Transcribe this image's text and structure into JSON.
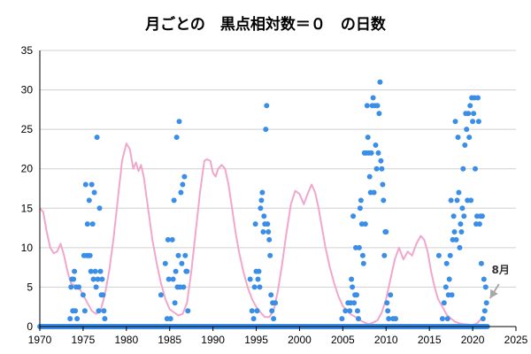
{
  "chart_data": {
    "type": "scatter",
    "title": "月ごとの　黒点相対数＝０　の日数",
    "xlabel": "",
    "ylabel": "",
    "xlim": [
      1970,
      2025
    ],
    "ylim": [
      0,
      35
    ],
    "x_ticks": [
      1970,
      1975,
      1980,
      1985,
      1990,
      1995,
      2000,
      2005,
      2010,
      2015,
      2020,
      2025
    ],
    "y_ticks": [
      0,
      5,
      10,
      15,
      20,
      25,
      30,
      35
    ],
    "grid": "horizontal",
    "legend": "none",
    "colors": {
      "points": "#3b8ee8",
      "line": "#f2a6cc",
      "axis": "#000000",
      "grid": "#d0d0d0",
      "annotation": "#a8a8a8"
    },
    "series": [
      {
        "type": "scatter",
        "points": [
          [
            1973.5,
            1
          ],
          [
            1973.6,
            5
          ],
          [
            1973.7,
            6
          ],
          [
            1973.8,
            2
          ],
          [
            1973.9,
            6
          ],
          [
            1974.0,
            7
          ],
          [
            1974.1,
            2
          ],
          [
            1974.2,
            5
          ],
          [
            1974.3,
            1
          ],
          [
            1974.5,
            5
          ],
          [
            1975.0,
            4
          ],
          [
            1975.1,
            9
          ],
          [
            1975.2,
            2
          ],
          [
            1975.3,
            18
          ],
          [
            1975.4,
            9
          ],
          [
            1975.5,
            13
          ],
          [
            1975.6,
            9
          ],
          [
            1975.7,
            16
          ],
          [
            1975.8,
            9
          ],
          [
            1975.9,
            7
          ],
          [
            1976.0,
            18
          ],
          [
            1976.1,
            13
          ],
          [
            1976.2,
            6
          ],
          [
            1976.3,
            17
          ],
          [
            1976.4,
            7
          ],
          [
            1976.5,
            5
          ],
          [
            1976.6,
            24
          ],
          [
            1976.7,
            6
          ],
          [
            1976.8,
            2
          ],
          [
            1976.9,
            15
          ],
          [
            1977.0,
            7
          ],
          [
            1977.1,
            4
          ],
          [
            1977.2,
            6
          ],
          [
            1977.3,
            4
          ],
          [
            1977.4,
            2
          ],
          [
            1977.5,
            1
          ],
          [
            1984.0,
            4
          ],
          [
            1984.5,
            8
          ],
          [
            1984.7,
            1
          ],
          [
            1984.8,
            11
          ],
          [
            1984.9,
            6
          ],
          [
            1985.1,
            1
          ],
          [
            1985.3,
            11
          ],
          [
            1985.4,
            6
          ],
          [
            1985.5,
            16
          ],
          [
            1985.6,
            3
          ],
          [
            1985.7,
            7
          ],
          [
            1985.8,
            24
          ],
          [
            1985.9,
            5
          ],
          [
            1986.0,
            9
          ],
          [
            1986.1,
            26
          ],
          [
            1986.2,
            5
          ],
          [
            1986.3,
            17
          ],
          [
            1986.4,
            8
          ],
          [
            1986.5,
            18
          ],
          [
            1986.6,
            5
          ],
          [
            1986.7,
            19
          ],
          [
            1986.8,
            9
          ],
          [
            1986.9,
            7
          ],
          [
            1987.0,
            7
          ],
          [
            1987.1,
            2
          ],
          [
            1994.3,
            6
          ],
          [
            1994.5,
            2
          ],
          [
            1994.7,
            1
          ],
          [
            1994.8,
            5
          ],
          [
            1994.9,
            13
          ],
          [
            1995.0,
            7
          ],
          [
            1995.1,
            2
          ],
          [
            1995.2,
            6
          ],
          [
            1995.3,
            7
          ],
          [
            1995.4,
            5
          ],
          [
            1995.5,
            15
          ],
          [
            1995.6,
            16
          ],
          [
            1995.7,
            17
          ],
          [
            1995.8,
            12
          ],
          [
            1995.9,
            14
          ],
          [
            1996.0,
            13
          ],
          [
            1996.1,
            25
          ],
          [
            1996.2,
            28
          ],
          [
            1996.3,
            13
          ],
          [
            1996.4,
            12
          ],
          [
            1996.5,
            11
          ],
          [
            1996.6,
            9
          ],
          [
            1996.7,
            4
          ],
          [
            1996.8,
            2
          ],
          [
            1996.9,
            3
          ],
          [
            1997.0,
            1
          ],
          [
            1997.2,
            3
          ],
          [
            2004.9,
            1
          ],
          [
            2005.3,
            2
          ],
          [
            2005.6,
            3
          ],
          [
            2005.8,
            2
          ],
          [
            2005.9,
            3
          ],
          [
            2006.0,
            6
          ],
          [
            2006.1,
            5
          ],
          [
            2006.2,
            14
          ],
          [
            2006.3,
            3
          ],
          [
            2006.4,
            4
          ],
          [
            2006.5,
            10
          ],
          [
            2006.6,
            4
          ],
          [
            2006.7,
            2
          ],
          [
            2006.8,
            1
          ],
          [
            2006.9,
            10
          ],
          [
            2007.0,
            15
          ],
          [
            2007.1,
            16
          ],
          [
            2007.2,
            13
          ],
          [
            2007.3,
            9
          ],
          [
            2007.4,
            8
          ],
          [
            2007.5,
            22
          ],
          [
            2007.6,
            13
          ],
          [
            2007.7,
            22
          ],
          [
            2007.8,
            28
          ],
          [
            2007.9,
            24
          ],
          [
            2008.0,
            22
          ],
          [
            2008.1,
            19
          ],
          [
            2008.2,
            17
          ],
          [
            2008.3,
            22
          ],
          [
            2008.4,
            28
          ],
          [
            2008.5,
            29
          ],
          [
            2008.6,
            17
          ],
          [
            2008.7,
            28
          ],
          [
            2008.8,
            23
          ],
          [
            2008.9,
            20
          ],
          [
            2009.0,
            28
          ],
          [
            2009.1,
            22
          ],
          [
            2009.2,
            27
          ],
          [
            2009.3,
            31
          ],
          [
            2009.4,
            21
          ],
          [
            2009.5,
            20
          ],
          [
            2009.6,
            18
          ],
          [
            2009.7,
            16
          ],
          [
            2009.8,
            9
          ],
          [
            2009.9,
            12
          ],
          [
            2010.0,
            12
          ],
          [
            2010.1,
            3
          ],
          [
            2010.2,
            2
          ],
          [
            2010.3,
            1
          ],
          [
            2010.5,
            4
          ],
          [
            2010.8,
            1
          ],
          [
            2011.1,
            1
          ],
          [
            2016.1,
            9
          ],
          [
            2016.5,
            1
          ],
          [
            2016.7,
            3
          ],
          [
            2016.9,
            5
          ],
          [
            2017.0,
            8
          ],
          [
            2017.1,
            1
          ],
          [
            2017.2,
            4
          ],
          [
            2017.3,
            6
          ],
          [
            2017.4,
            9
          ],
          [
            2017.5,
            16
          ],
          [
            2017.6,
            4
          ],
          [
            2017.7,
            11
          ],
          [
            2017.8,
            14
          ],
          [
            2017.9,
            12
          ],
          [
            2018.0,
            26
          ],
          [
            2018.1,
            11
          ],
          [
            2018.2,
            16
          ],
          [
            2018.3,
            24
          ],
          [
            2018.4,
            17
          ],
          [
            2018.5,
            10
          ],
          [
            2018.6,
            13
          ],
          [
            2018.7,
            12
          ],
          [
            2018.8,
            15
          ],
          [
            2018.9,
            20
          ],
          [
            2019.0,
            14
          ],
          [
            2019.1,
            23
          ],
          [
            2019.2,
            27
          ],
          [
            2019.3,
            25
          ],
          [
            2019.4,
            16
          ],
          [
            2019.5,
            27
          ],
          [
            2019.6,
            24
          ],
          [
            2019.7,
            28
          ],
          [
            2019.8,
            16
          ],
          [
            2019.9,
            29
          ],
          [
            2020.0,
            26
          ],
          [
            2020.1,
            27
          ],
          [
            2020.2,
            29
          ],
          [
            2020.3,
            20
          ],
          [
            2020.4,
            13
          ],
          [
            2020.5,
            14
          ],
          [
            2020.6,
            29
          ],
          [
            2020.7,
            26
          ],
          [
            2020.8,
            13
          ],
          [
            2020.9,
            14
          ],
          [
            2021.0,
            8
          ],
          [
            2021.1,
            14
          ],
          [
            2021.2,
            1
          ],
          [
            2021.3,
            6
          ],
          [
            2021.4,
            2
          ],
          [
            2021.5,
            5
          ],
          [
            2021.6,
            3
          ],
          [
            2021.7,
            0
          ]
        ]
      },
      {
        "type": "line",
        "points": [
          [
            1970.0,
            15
          ],
          [
            1970.4,
            14.5
          ],
          [
            1970.8,
            12
          ],
          [
            1971.2,
            10
          ],
          [
            1971.6,
            9.3
          ],
          [
            1972.0,
            9.5
          ],
          [
            1972.4,
            10.5
          ],
          [
            1972.8,
            9
          ],
          [
            1973.2,
            7
          ],
          [
            1973.6,
            5.5
          ],
          [
            1974.0,
            5.2
          ],
          [
            1974.5,
            5
          ],
          [
            1975.0,
            4
          ],
          [
            1975.5,
            3
          ],
          [
            1976.0,
            2
          ],
          [
            1976.5,
            1.6
          ],
          [
            1977.0,
            2
          ],
          [
            1977.5,
            4
          ],
          [
            1978.0,
            7
          ],
          [
            1978.5,
            11
          ],
          [
            1979.0,
            16
          ],
          [
            1979.5,
            21
          ],
          [
            1980.0,
            23.2
          ],
          [
            1980.4,
            22.5
          ],
          [
            1980.8,
            20
          ],
          [
            1981.1,
            20.8
          ],
          [
            1981.4,
            19.7
          ],
          [
            1981.7,
            20.5
          ],
          [
            1982.0,
            19
          ],
          [
            1982.5,
            15
          ],
          [
            1983.0,
            11
          ],
          [
            1983.5,
            8
          ],
          [
            1984.0,
            5.5
          ],
          [
            1984.5,
            3.5
          ],
          [
            1985.0,
            2.2
          ],
          [
            1985.5,
            1.8
          ],
          [
            1986.0,
            1.4
          ],
          [
            1986.5,
            1.6
          ],
          [
            1987.0,
            3
          ],
          [
            1987.5,
            7
          ],
          [
            1988.0,
            12
          ],
          [
            1988.5,
            17
          ],
          [
            1989.0,
            21
          ],
          [
            1989.3,
            21.2
          ],
          [
            1989.7,
            21
          ],
          [
            1990.0,
            19.5
          ],
          [
            1990.3,
            19
          ],
          [
            1990.6,
            20
          ],
          [
            1991.0,
            20.5
          ],
          [
            1991.4,
            20
          ],
          [
            1991.8,
            18
          ],
          [
            1992.2,
            15
          ],
          [
            1992.6,
            12
          ],
          [
            1993.0,
            9.5
          ],
          [
            1993.5,
            7
          ],
          [
            1994.0,
            5
          ],
          [
            1994.5,
            3.5
          ],
          [
            1995.0,
            2.5
          ],
          [
            1995.5,
            1.8
          ],
          [
            1996.0,
            1.2
          ],
          [
            1996.5,
            1.2
          ],
          [
            1997.0,
            2
          ],
          [
            1997.5,
            4.5
          ],
          [
            1998.0,
            8
          ],
          [
            1998.5,
            12
          ],
          [
            1999.0,
            15.5
          ],
          [
            1999.5,
            17.2
          ],
          [
            2000.0,
            16.8
          ],
          [
            2000.5,
            15.5
          ],
          [
            2001.0,
            17
          ],
          [
            2001.4,
            18
          ],
          [
            2001.8,
            17
          ],
          [
            2002.2,
            15
          ],
          [
            2002.6,
            12.5
          ],
          [
            2003.0,
            10
          ],
          [
            2003.5,
            7.5
          ],
          [
            2004.0,
            5.5
          ],
          [
            2004.5,
            3.8
          ],
          [
            2005.0,
            2.6
          ],
          [
            2005.5,
            2
          ],
          [
            2006.0,
            1.5
          ],
          [
            2006.5,
            1.2
          ],
          [
            2007.0,
            0.8
          ],
          [
            2007.5,
            0.5
          ],
          [
            2008.0,
            0.3
          ],
          [
            2008.5,
            0.5
          ],
          [
            2009.0,
            0.8
          ],
          [
            2009.5,
            1.8
          ],
          [
            2010.0,
            3.5
          ],
          [
            2010.5,
            6
          ],
          [
            2011.0,
            8.5
          ],
          [
            2011.5,
            10
          ],
          [
            2012.0,
            8.5
          ],
          [
            2012.5,
            9.5
          ],
          [
            2013.0,
            9
          ],
          [
            2013.5,
            10.5
          ],
          [
            2014.0,
            11.5
          ],
          [
            2014.4,
            11
          ],
          [
            2014.8,
            9.5
          ],
          [
            2015.2,
            7
          ],
          [
            2015.6,
            5
          ],
          [
            2016.0,
            3.5
          ],
          [
            2016.5,
            2.5
          ],
          [
            2017.0,
            1.5
          ],
          [
            2017.5,
            1
          ],
          [
            2018.0,
            0.6
          ],
          [
            2018.5,
            0.4
          ],
          [
            2019.0,
            0.3
          ],
          [
            2019.5,
            0.25
          ],
          [
            2020.0,
            0.2
          ],
          [
            2020.5,
            0.4
          ],
          [
            2021.0,
            1
          ]
        ]
      }
    ],
    "annotations": [
      {
        "text": "8月",
        "x": 2021.6,
        "y": 0
      }
    ]
  }
}
